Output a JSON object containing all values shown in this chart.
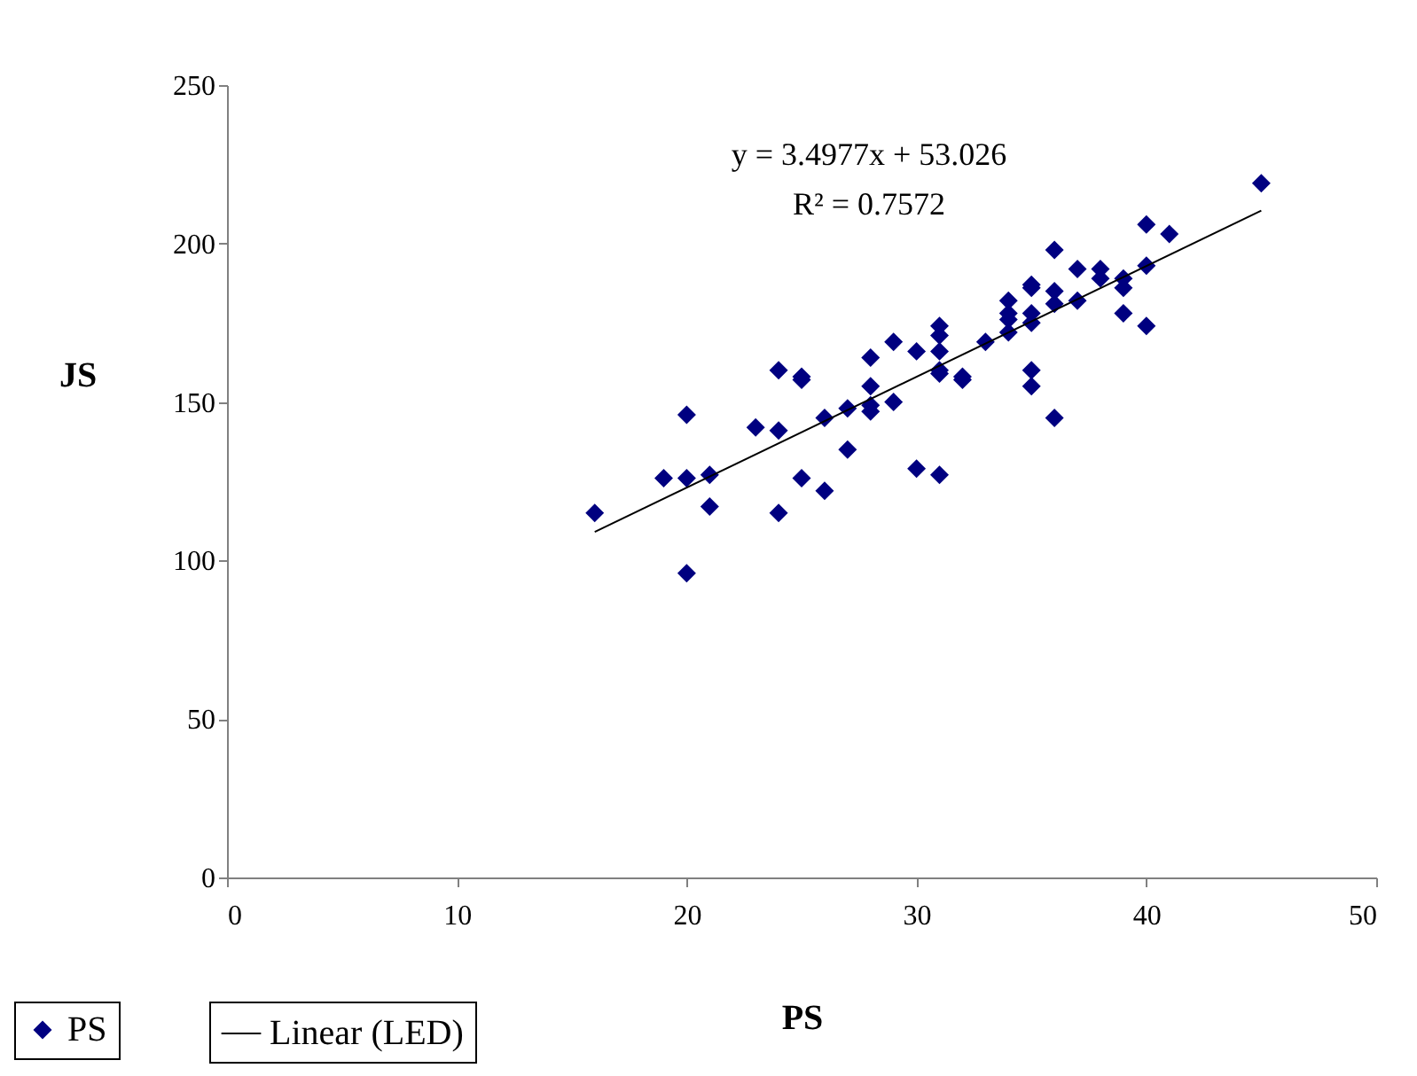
{
  "chart_data": {
    "type": "scatter",
    "xlabel": "PS",
    "ylabel": "JS",
    "xlim": [
      0,
      50
    ],
    "ylim": [
      0,
      250
    ],
    "xticks": [
      0,
      10,
      20,
      30,
      40,
      50
    ],
    "yticks": [
      0,
      50,
      100,
      150,
      200,
      250
    ],
    "grid": false,
    "legend": "bottom left",
    "marker": "diamond",
    "annotations": [
      "y = 3.4977x + 53.026",
      "R² = 0.7572"
    ],
    "series": [
      {
        "name": "PS",
        "color": "#000080",
        "x": [
          16,
          19,
          20,
          20,
          20,
          21,
          21,
          23,
          24,
          24,
          24,
          25,
          25,
          25,
          26,
          26,
          27,
          27,
          28,
          28,
          28,
          28,
          29,
          29,
          30,
          30,
          31,
          31,
          31,
          31,
          31,
          31,
          32,
          32,
          33,
          34,
          34,
          34,
          34,
          35,
          35,
          35,
          35,
          35,
          35,
          36,
          36,
          36,
          36,
          37,
          37,
          38,
          38,
          39,
          39,
          39,
          40,
          40,
          40,
          41,
          45
        ],
        "values": [
          115,
          126,
          146,
          126,
          96,
          127,
          117,
          142,
          160,
          141,
          115,
          158,
          157,
          126,
          145,
          122,
          148,
          135,
          164,
          155,
          149,
          147,
          169,
          150,
          166,
          129,
          174,
          171,
          166,
          160,
          159,
          127,
          158,
          157,
          169,
          182,
          178,
          176,
          172,
          187,
          186,
          178,
          175,
          160,
          155,
          198,
          185,
          181,
          145,
          192,
          182,
          192,
          189,
          189,
          186,
          178,
          206,
          193,
          174,
          203,
          219
        ]
      },
      {
        "name": "Linear (LED)",
        "type": "line",
        "color": "#000000",
        "line_style": "solid",
        "marker": "none",
        "x": [
          16,
          45
        ],
        "values": [
          109,
          210.4
        ]
      }
    ]
  }
}
